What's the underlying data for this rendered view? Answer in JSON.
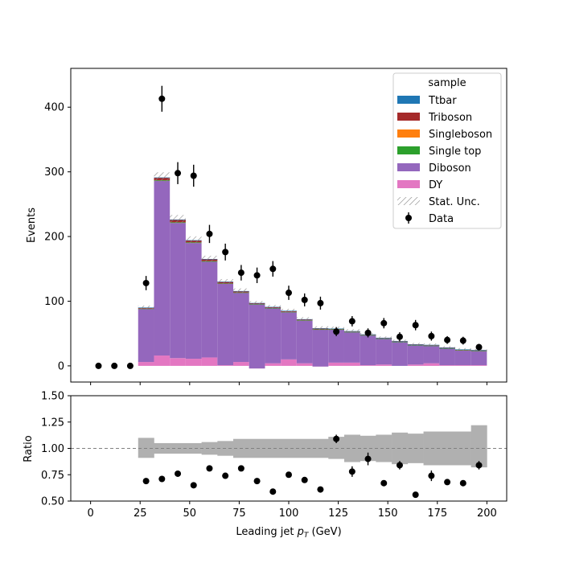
{
  "chart_data": [
    {
      "type": "bar",
      "stacked": true,
      "xlabel": "Leading jet  pT (GeV)",
      "xlabel_main": "Leading jet  ",
      "xlabel_var": "p",
      "xlabel_sub": "T",
      "xlabel_unit": " (GeV)",
      "ylabel": "Events",
      "xlim": [
        -10,
        210
      ],
      "ylim": [
        -25,
        460
      ],
      "xticks": [
        "0",
        "25",
        "50",
        "75",
        "100",
        "125",
        "150",
        "175",
        "200"
      ],
      "yticks": [
        "0",
        "100",
        "200",
        "300",
        "400"
      ],
      "bin_edges": [
        24,
        32,
        40,
        48,
        56,
        64,
        72,
        80,
        88,
        96,
        104,
        112,
        120,
        128,
        136,
        144,
        152,
        160,
        168,
        176,
        184,
        192,
        200
      ],
      "series": [
        {
          "name": "DY",
          "color": "#e377c2",
          "values": [
            6,
            16,
            12,
            11,
            13,
            1,
            6,
            -4,
            4,
            10,
            4,
            -1,
            5,
            5,
            1,
            2,
            0,
            2,
            4,
            1,
            1,
            1
          ]
        },
        {
          "name": "Diboson",
          "color": "#9467bd",
          "values": [
            82,
            270,
            209,
            179,
            148,
            126,
            107,
            99,
            85,
            73,
            66,
            57,
            51,
            47,
            46,
            40,
            37,
            30,
            27,
            26,
            23,
            22
          ]
        },
        {
          "name": "Single top",
          "color": "#2ca02c",
          "values": [
            0.5,
            1,
            1,
            1,
            1,
            0.5,
            0.5,
            0.5,
            0.5,
            0.5,
            0.5,
            0.5,
            0.5,
            0.5,
            0.5,
            0.3,
            0.3,
            0.3,
            0.3,
            0.3,
            0.3,
            0.3
          ]
        },
        {
          "name": "Singleboson",
          "color": "#ff7f0e",
          "values": [
            0,
            0,
            0,
            0,
            0,
            0,
            0,
            0,
            0,
            0,
            0,
            0,
            0,
            0,
            0,
            0,
            0,
            0,
            0,
            0,
            0,
            0
          ]
        },
        {
          "name": "Triboson",
          "color": "#a52a2a",
          "values": [
            1.5,
            4,
            4,
            3,
            3,
            2.5,
            2,
            1.5,
            1.5,
            1.5,
            1.5,
            1.5,
            1,
            1,
            1,
            1,
            1,
            1,
            1,
            1,
            1,
            1
          ]
        },
        {
          "name": "Ttbar",
          "color": "#1f77b4",
          "values": [
            0.2,
            0.3,
            0.3,
            0.3,
            0.3,
            0.2,
            0.2,
            0.2,
            0.2,
            0.2,
            0.2,
            0.2,
            0.2,
            0.2,
            0.2,
            0.2,
            0.2,
            0.2,
            0.2,
            0.2,
            0.2,
            0.2
          ]
        }
      ],
      "stat_unc": [
        3,
        8,
        7,
        6,
        5,
        4,
        4,
        3,
        3,
        3,
        3,
        3,
        3,
        3,
        2,
        2,
        2,
        2,
        2,
        2,
        2,
        2
      ],
      "data": {
        "name": "Data",
        "x": [
          4,
          12,
          20,
          28,
          36,
          44,
          52,
          60,
          68,
          76,
          84,
          92,
          100,
          108,
          116,
          124,
          132,
          140,
          148,
          156,
          164,
          172,
          180,
          188,
          196
        ],
        "y": [
          0,
          0,
          0,
          128,
          413,
          298,
          294,
          204,
          176,
          144,
          140,
          150,
          113,
          102,
          97,
          53,
          69,
          51,
          66,
          45,
          63,
          46,
          40,
          39,
          29
        ],
        "err": [
          0,
          0,
          0,
          11,
          20,
          17,
          17,
          14,
          13,
          12,
          12,
          12,
          11,
          10,
          10,
          7,
          8,
          7,
          8,
          7,
          8,
          7,
          6,
          6,
          5
        ]
      },
      "legend": {
        "title": "sample",
        "placement": "top-right",
        "entries": [
          {
            "label": "Ttbar",
            "kind": "patch",
            "color": "#1f77b4"
          },
          {
            "label": "Triboson",
            "kind": "patch",
            "color": "#a52a2a"
          },
          {
            "label": "Singleboson",
            "kind": "patch",
            "color": "#ff7f0e"
          },
          {
            "label": "Single top",
            "kind": "patch",
            "color": "#2ca02c"
          },
          {
            "label": "Diboson",
            "kind": "patch",
            "color": "#9467bd"
          },
          {
            "label": "DY",
            "kind": "patch",
            "color": "#e377c2"
          },
          {
            "label": "Stat. Unc.",
            "kind": "hatch",
            "color": "#888888"
          },
          {
            "label": "Data",
            "kind": "errorbar",
            "color": "#000000"
          }
        ]
      }
    },
    {
      "type": "scatter",
      "ylabel": "Ratio",
      "xlim": [
        -10,
        210
      ],
      "ylim": [
        0.5,
        1.5
      ],
      "yticks": [
        "0.50",
        "0.75",
        "1.00",
        "1.25",
        "1.50"
      ],
      "reference_line": 1.0,
      "band_edges": [
        24,
        32,
        40,
        56,
        64,
        72,
        120,
        128,
        136,
        144,
        152,
        160,
        168,
        176,
        192,
        200
      ],
      "band_low": [
        0.91,
        0.95,
        0.95,
        0.94,
        0.93,
        0.91,
        0.9,
        0.87,
        0.88,
        0.87,
        0.85,
        0.86,
        0.84,
        0.84,
        0.82
      ],
      "band_high": [
        1.1,
        1.05,
        1.05,
        1.06,
        1.07,
        1.09,
        1.11,
        1.13,
        1.12,
        1.13,
        1.15,
        1.14,
        1.16,
        1.16,
        1.22
      ],
      "points": {
        "x": [
          28,
          36,
          44,
          52,
          60,
          68,
          76,
          84,
          92,
          100,
          108,
          116,
          124,
          132,
          140,
          148,
          156,
          164,
          172,
          180,
          188,
          196
        ],
        "y": [
          0.69,
          0.71,
          0.76,
          0.65,
          0.81,
          0.74,
          0.81,
          0.69,
          0.59,
          0.75,
          0.7,
          0.61,
          1.09,
          0.78,
          0.9,
          0.67,
          0.84,
          0.56,
          0.74,
          0.68,
          0.67,
          0.84
        ],
        "err": [
          0,
          0,
          0,
          0,
          0,
          0,
          0,
          0,
          0,
          0,
          0,
          0,
          0.04,
          0.05,
          0.06,
          0,
          0.04,
          0,
          0.05,
          0,
          0,
          0.04
        ]
      }
    }
  ]
}
